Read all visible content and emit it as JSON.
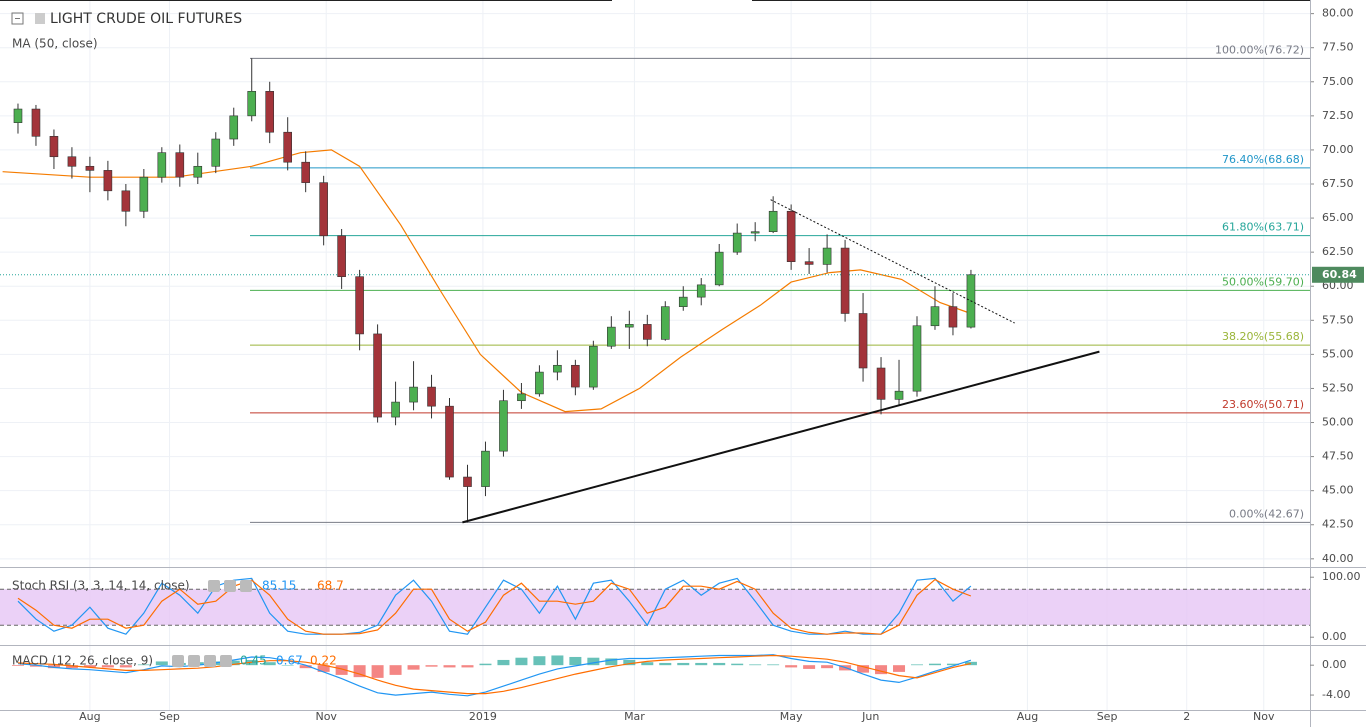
{
  "chart_data": [
    {
      "type": "candlestick",
      "title": "LIGHT CRUDE OIL FUTURES",
      "x": [
        3,
        10,
        17,
        24,
        31,
        38,
        45,
        52,
        59,
        66,
        73,
        80,
        87,
        94,
        101,
        108,
        115,
        122,
        129,
        136,
        143,
        150,
        157,
        164,
        171,
        178,
        185,
        192,
        199,
        206,
        213,
        220,
        227,
        234,
        241,
        248,
        255,
        262,
        269,
        276,
        283,
        290,
        297,
        304,
        311,
        318,
        325,
        332,
        339,
        346,
        353,
        360,
        367,
        374
      ],
      "open": [
        72.0,
        73.0,
        71.0,
        69.5,
        68.8,
        68.5,
        67.0,
        65.5,
        68.0,
        69.8,
        68.0,
        68.8,
        70.8,
        72.5,
        74.3,
        71.3,
        69.1,
        67.6,
        63.7,
        60.7,
        56.5,
        50.4,
        51.5,
        52.6,
        51.2,
        46.0,
        45.3,
        47.9,
        51.6,
        52.1,
        53.7,
        54.2,
        52.6,
        55.6,
        57.0,
        57.2,
        56.1,
        58.5,
        59.2,
        60.1,
        62.5,
        63.9,
        64.0,
        65.5,
        61.8,
        61.6,
        62.8,
        58.0,
        54.0,
        51.7,
        52.3,
        57.1,
        58.5,
        57.0
      ],
      "high": [
        73.4,
        73.3,
        71.5,
        70.2,
        69.5,
        69.2,
        67.5,
        68.6,
        70.2,
        70.4,
        69.8,
        71.3,
        73.1,
        76.72,
        75.0,
        72.4,
        69.9,
        68.1,
        64.2,
        61.2,
        57.2,
        53.0,
        54.5,
        53.5,
        51.8,
        46.9,
        48.6,
        52.4,
        52.9,
        54.2,
        55.3,
        54.6,
        56.0,
        57.8,
        58.2,
        57.9,
        58.9,
        60.0,
        60.6,
        63.1,
        64.6,
        64.7,
        66.6,
        66.0,
        62.8,
        63.8,
        63.4,
        59.5,
        54.8,
        54.6,
        57.8,
        60.0,
        59.5,
        61.2
      ],
      "low": [
        71.2,
        70.3,
        68.6,
        67.9,
        66.9,
        66.3,
        64.4,
        65.0,
        67.6,
        67.3,
        67.5,
        68.3,
        70.3,
        72.1,
        70.5,
        68.5,
        66.9,
        63.0,
        59.8,
        55.3,
        50.0,
        49.8,
        50.9,
        50.3,
        45.8,
        42.67,
        44.6,
        47.5,
        51.0,
        51.9,
        53.1,
        52.0,
        52.4,
        55.4,
        55.4,
        55.6,
        56.0,
        58.2,
        58.6,
        60.0,
        62.3,
        63.3,
        63.9,
        61.2,
        60.9,
        61.0,
        57.4,
        53.0,
        50.6,
        51.3,
        51.9,
        56.8,
        56.4,
        56.9
      ],
      "close": [
        73.0,
        71.0,
        69.5,
        68.8,
        68.5,
        67.0,
        65.5,
        68.0,
        69.8,
        68.0,
        68.8,
        70.8,
        72.5,
        74.3,
        71.3,
        69.1,
        67.6,
        63.7,
        60.7,
        56.5,
        50.4,
        51.5,
        52.6,
        51.2,
        46.0,
        45.3,
        47.9,
        51.6,
        52.1,
        53.7,
        54.2,
        52.6,
        55.6,
        57.0,
        57.2,
        56.1,
        58.5,
        59.2,
        60.1,
        62.5,
        63.9,
        64.0,
        65.5,
        61.8,
        61.6,
        62.8,
        58.0,
        54.0,
        51.7,
        52.3,
        57.1,
        58.5,
        57.0,
        60.84
      ],
      "up_color": "#4caf50",
      "down_color": "#a3343a",
      "series": [
        {
          "name": "MA (50, close)",
          "color": "#f57c00",
          "x": [
            -3,
            31,
            64,
            94,
            113,
            125,
            136,
            152,
            168,
            183,
            199,
            216,
            230,
            245,
            261,
            277,
            292,
            304,
            319,
            331,
            347,
            362,
            374
          ],
          "values": [
            68.4,
            68.0,
            68.0,
            68.8,
            69.8,
            70.0,
            68.8,
            64.5,
            59.5,
            55.0,
            52.2,
            50.8,
            51.0,
            52.5,
            54.8,
            56.8,
            58.6,
            60.3,
            61.0,
            61.2,
            60.5,
            58.8,
            58.0
          ]
        }
      ],
      "fib_levels": [
        {
          "value": 76.72,
          "label": "100.00%(76.72)",
          "color": "#787b86"
        },
        {
          "value": 68.68,
          "label": "76.40%(68.68)",
          "color": "#2196c8"
        },
        {
          "value": 63.71,
          "label": "61.80%(63.71)",
          "color": "#26a69a"
        },
        {
          "value": 59.7,
          "label": "50.00%(59.70)",
          "color": "#4caf50"
        },
        {
          "value": 55.68,
          "label": "38.20%(55.68)",
          "color": "#9ab53a"
        },
        {
          "value": 50.71,
          "label": "23.60%(50.71)",
          "color": "#c0392b"
        },
        {
          "value": 42.67,
          "label": "0.00%(42.67)",
          "color": "#787b86"
        }
      ],
      "trendlines": [
        {
          "x": [
            176,
            424
          ],
          "values": [
            42.67,
            55.2
          ],
          "dashed": false
        },
        {
          "x": [
            296,
            391
          ],
          "values": [
            66.35,
            57.3
          ],
          "dashed": true
        }
      ],
      "xlim": [
        -4,
        506
      ],
      "ylim": [
        39.4,
        81.0
      ],
      "xticks": [
        {
          "value": 31,
          "label": "Aug"
        },
        {
          "value": 62,
          "label": "Sep"
        },
        {
          "value": 123,
          "label": "Nov"
        },
        {
          "value": 184,
          "label": "2019"
        },
        {
          "value": 243,
          "label": "Mar"
        },
        {
          "value": 304,
          "label": "May"
        },
        {
          "value": 335,
          "label": "Jun"
        },
        {
          "value": 396,
          "label": "Aug"
        },
        {
          "value": 427,
          "label": "Sep"
        },
        {
          "value": 458,
          "label": "2"
        },
        {
          "value": 488,
          "label": "Nov"
        }
      ],
      "yticks": [
        {
          "value": 40,
          "label": "40.00"
        },
        {
          "value": 42.5,
          "label": "42.50"
        },
        {
          "value": 45,
          "label": "45.00"
        },
        {
          "value": 47.5,
          "label": "47.50"
        },
        {
          "value": 50,
          "label": "50.00"
        },
        {
          "value": 52.5,
          "label": "52.50"
        },
        {
          "value": 55,
          "label": "55.00"
        },
        {
          "value": 57.5,
          "label": "57.50"
        },
        {
          "value": 60,
          "label": "60.00"
        },
        {
          "value": 62.5,
          "label": "62.50"
        },
        {
          "value": 65,
          "label": "65.00"
        },
        {
          "value": 67.5,
          "label": "67.50"
        },
        {
          "value": 70,
          "label": "70.00"
        },
        {
          "value": 72.5,
          "label": "72.50"
        },
        {
          "value": 75,
          "label": "75.00"
        },
        {
          "value": 77.5,
          "label": "77.50"
        },
        {
          "value": 80,
          "label": "80.00"
        }
      ],
      "grid": true
    },
    {
      "type": "line",
      "title": "Stoch RSI (3, 3, 14, 14, close)",
      "band": [
        20,
        80
      ],
      "series": [
        {
          "color": "#2196f3",
          "values": [
            60,
            30,
            10,
            20,
            50,
            15,
            5,
            40,
            90,
            70,
            40,
            85,
            95,
            98,
            40,
            10,
            5,
            5,
            5,
            8,
            20,
            70,
            95,
            60,
            10,
            5,
            50,
            95,
            80,
            40,
            85,
            30,
            90,
            95,
            60,
            20,
            80,
            95,
            70,
            90,
            98,
            60,
            20,
            10,
            5,
            5,
            10,
            5,
            5,
            40,
            95,
            98,
            60,
            85.15
          ]
        },
        {
          "color": "#ff6d00",
          "values": [
            65,
            45,
            20,
            15,
            30,
            30,
            15,
            20,
            60,
            80,
            55,
            60,
            85,
            95,
            70,
            30,
            10,
            5,
            5,
            6,
            12,
            40,
            80,
            80,
            30,
            10,
            25,
            70,
            90,
            60,
            60,
            55,
            60,
            90,
            80,
            40,
            50,
            85,
            85,
            80,
            93,
            80,
            40,
            15,
            8,
            5,
            7,
            7,
            5,
            20,
            70,
            96,
            80,
            68.7
          ]
        }
      ],
      "ylim": [
        -13,
        112
      ],
      "yticks": [
        {
          "value": 100,
          "label": "100.00"
        },
        {
          "value": 0,
          "label": "0.00"
        }
      ]
    },
    {
      "type": "macd",
      "title": "MACD (12, 26, close, 9)",
      "histogram": {
        "color": "#26a69a",
        "negative_color": "#ef5350",
        "values": [
          -0.1,
          -0.2,
          -0.4,
          -0.4,
          -0.3,
          -0.3,
          -0.3,
          0.1,
          0.5,
          0.3,
          0.4,
          0.5,
          0.6,
          0.7,
          0.4,
          0.0,
          -0.4,
          -0.9,
          -1.3,
          -1.6,
          -1.7,
          -1.3,
          -0.6,
          -0.2,
          -0.3,
          -0.3,
          0.2,
          0.7,
          1.0,
          1.2,
          1.3,
          1.1,
          1.0,
          0.9,
          0.7,
          0.4,
          0.3,
          0.3,
          0.3,
          0.3,
          0.2,
          0.1,
          0.1,
          -0.3,
          -0.5,
          -0.4,
          -0.7,
          -1.0,
          -1.2,
          -0.9,
          0.1,
          0.2,
          0.2,
          0.45
        ]
      },
      "series": [
        {
          "color": "#2196f3",
          "values": [
            0.2,
            0.0,
            -0.3,
            -0.5,
            -0.6,
            -0.8,
            -1.0,
            -0.6,
            -0.1,
            -0.2,
            0.0,
            0.3,
            0.7,
            1.1,
            1.0,
            0.6,
            0.0,
            -0.9,
            -1.8,
            -2.8,
            -3.7,
            -4.0,
            -3.8,
            -3.6,
            -3.9,
            -4.1,
            -3.6,
            -2.8,
            -2.0,
            -1.2,
            -0.5,
            -0.1,
            0.3,
            0.7,
            0.9,
            0.9,
            1.0,
            1.1,
            1.2,
            1.3,
            1.3,
            1.3,
            1.4,
            0.9,
            0.5,
            0.4,
            -0.3,
            -1.2,
            -2.0,
            -2.3,
            -1.6,
            -0.8,
            -0.1,
            0.67
          ]
        },
        {
          "color": "#ff6d00",
          "values": [
            0.3,
            0.2,
            0.1,
            -0.1,
            -0.3,
            -0.5,
            -0.7,
            -0.7,
            -0.6,
            -0.5,
            -0.4,
            -0.2,
            0.1,
            0.4,
            0.6,
            0.6,
            0.4,
            0.0,
            -0.5,
            -1.2,
            -2.0,
            -2.7,
            -3.2,
            -3.4,
            -3.6,
            -3.8,
            -3.8,
            -3.5,
            -3.0,
            -2.4,
            -1.8,
            -1.2,
            -0.7,
            -0.2,
            0.2,
            0.5,
            0.7,
            0.8,
            0.9,
            1.0,
            1.1,
            1.2,
            1.3,
            1.2,
            1.0,
            0.8,
            0.4,
            -0.2,
            -0.8,
            -1.4,
            -1.7,
            -1.0,
            -0.3,
            0.22
          ]
        }
      ],
      "ylim": [
        -6,
        2.3
      ],
      "yticks": [
        {
          "value": 0,
          "label": "0.00"
        },
        {
          "value": -4,
          "label": "-4.00"
        }
      ]
    }
  ]
}
